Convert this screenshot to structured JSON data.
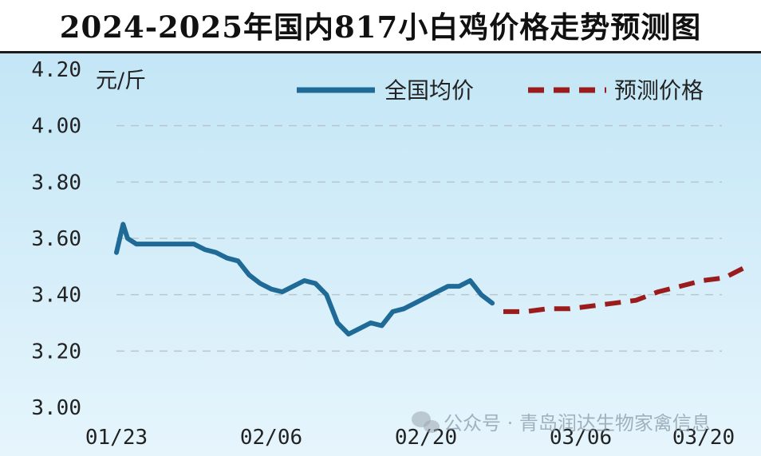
{
  "chart_data": {
    "type": "line",
    "title": "2024-2025年国内817小白鸡价格走势预测图",
    "ylabel": "元/斤",
    "xlabel": "",
    "ylim": [
      3.0,
      4.2
    ],
    "yticks": [
      "3.00",
      "3.20",
      "3.40",
      "3.60",
      "3.80",
      "4.00",
      "4.20"
    ],
    "ytick_values": [
      3.0,
      3.2,
      3.4,
      3.6,
      3.8,
      4.0,
      4.2
    ],
    "xticks": [
      "01/23",
      "02/06",
      "02/20",
      "03/06",
      "03/20"
    ],
    "xtick_days": [
      0,
      14,
      28,
      42,
      56
    ],
    "grid": true,
    "legend_position": "top-right",
    "series": [
      {
        "name": "全国均价",
        "color": "#1f6a96",
        "style": "solid",
        "x": [
          0,
          0.6,
          1.0,
          1.8,
          3,
          4,
          5,
          6,
          7,
          8,
          9,
          10,
          11,
          12,
          13,
          14,
          15,
          16,
          17,
          18,
          19,
          20,
          21,
          22,
          23,
          24,
          25,
          26,
          27,
          28,
          29,
          30,
          31,
          32,
          33,
          34
        ],
        "values": [
          3.55,
          3.65,
          3.6,
          3.58,
          3.58,
          3.58,
          3.58,
          3.58,
          3.58,
          3.56,
          3.55,
          3.53,
          3.52,
          3.47,
          3.44,
          3.42,
          3.41,
          3.43,
          3.45,
          3.44,
          3.4,
          3.3,
          3.26,
          3.28,
          3.3,
          3.29,
          3.34,
          3.35,
          3.37,
          3.39,
          3.41,
          3.43,
          3.43,
          3.45,
          3.4,
          3.37
        ]
      },
      {
        "name": "预测价格",
        "color": "#9b1c1c",
        "style": "dashed",
        "x": [
          35,
          37,
          39,
          41,
          43,
          45,
          47,
          49,
          51,
          53,
          55,
          57
        ],
        "values": [
          3.34,
          3.34,
          3.35,
          3.35,
          3.36,
          3.37,
          3.38,
          3.41,
          3.43,
          3.45,
          3.46,
          3.5
        ]
      }
    ]
  },
  "watermark": {
    "text": "公众号 · 青岛润达生物家禽信息",
    "icon": "wechat-icon"
  }
}
